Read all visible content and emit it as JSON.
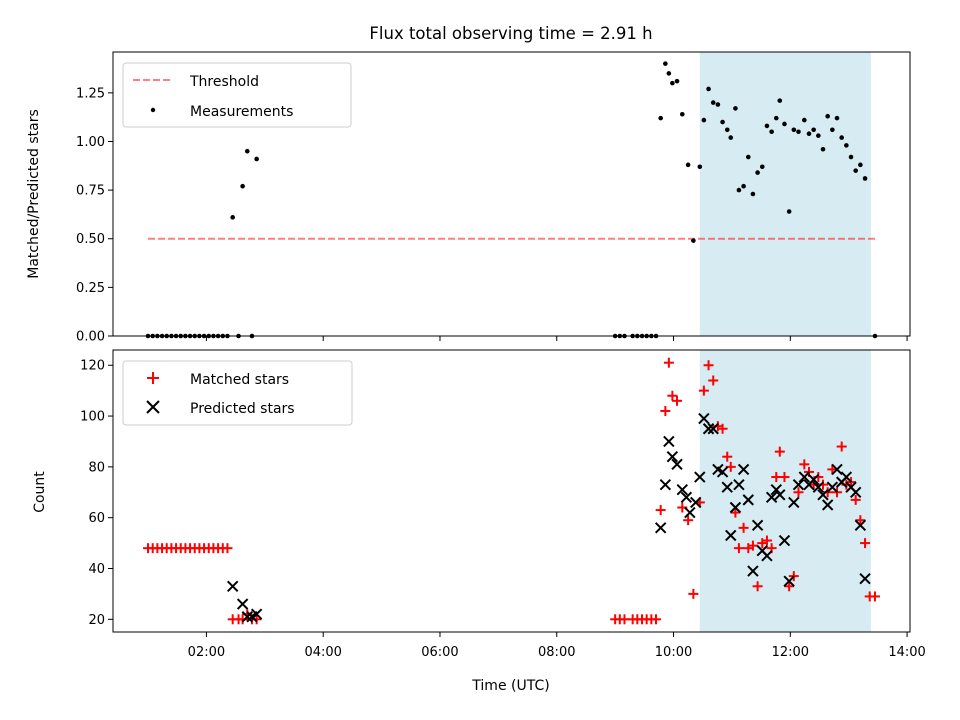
{
  "chart_data": [
    {
      "type": "scatter",
      "title": "Flux total observing time = 2.91 h",
      "xlabel": "",
      "ylabel": "Matched/Predicted stars",
      "x_unit": "hours UTC",
      "xlim": [
        0.4,
        14.05
      ],
      "ylim": [
        0,
        1.46
      ],
      "yticks": [
        "0.00",
        "0.25",
        "0.50",
        "0.75",
        "1.00",
        "1.25"
      ],
      "xticks": [
        "02:00",
        "04:00",
        "06:00",
        "08:00",
        "10:00",
        "12:00",
        "14:00"
      ],
      "highlight_span": [
        10.45,
        13.38
      ],
      "highlight_color": "#add8e6",
      "threshold": {
        "name": "Threshold",
        "value": 0.5,
        "x_range": [
          1.0,
          13.45
        ],
        "color": "#ff0000"
      },
      "legend_position": "upper-left",
      "series": [
        {
          "name": "Measurements",
          "color": "#000000",
          "marker": "dot",
          "points": [
            [
              1.0,
              0
            ],
            [
              1.08,
              0
            ],
            [
              1.16,
              0
            ],
            [
              1.24,
              0
            ],
            [
              1.32,
              0
            ],
            [
              1.4,
              0
            ],
            [
              1.48,
              0
            ],
            [
              1.56,
              0
            ],
            [
              1.64,
              0
            ],
            [
              1.72,
              0
            ],
            [
              1.8,
              0
            ],
            [
              1.88,
              0
            ],
            [
              1.96,
              0
            ],
            [
              2.04,
              0
            ],
            [
              2.12,
              0
            ],
            [
              2.2,
              0
            ],
            [
              2.28,
              0
            ],
            [
              2.36,
              0
            ],
            [
              2.45,
              0.61
            ],
            [
              2.55,
              0
            ],
            [
              2.62,
              0.77
            ],
            [
              2.7,
              0.95
            ],
            [
              2.78,
              0
            ],
            [
              2.86,
              0.91
            ],
            [
              9.0,
              0
            ],
            [
              9.08,
              0
            ],
            [
              9.16,
              0
            ],
            [
              9.3,
              0
            ],
            [
              9.38,
              0
            ],
            [
              9.46,
              0
            ],
            [
              9.54,
              0
            ],
            [
              9.62,
              0
            ],
            [
              9.7,
              0
            ],
            [
              9.78,
              1.12
            ],
            [
              9.86,
              1.4
            ],
            [
              9.92,
              1.35
            ],
            [
              9.98,
              1.3
            ],
            [
              10.06,
              1.31
            ],
            [
              10.15,
              1.14
            ],
            [
              10.25,
              0.88
            ],
            [
              10.34,
              0.49
            ],
            [
              10.45,
              0.87
            ],
            [
              10.52,
              1.11
            ],
            [
              10.6,
              1.27
            ],
            [
              10.68,
              1.2
            ],
            [
              10.76,
              1.19
            ],
            [
              10.84,
              1.1
            ],
            [
              10.92,
              1.06
            ],
            [
              10.98,
              1.02
            ],
            [
              11.06,
              1.17
            ],
            [
              11.12,
              0.75
            ],
            [
              11.2,
              0.77
            ],
            [
              11.28,
              0.92
            ],
            [
              11.36,
              0.73
            ],
            [
              11.44,
              0.84
            ],
            [
              11.52,
              0.87
            ],
            [
              11.6,
              1.08
            ],
            [
              11.68,
              1.05
            ],
            [
              11.76,
              1.12
            ],
            [
              11.82,
              1.21
            ],
            [
              11.9,
              1.09
            ],
            [
              11.98,
              0.64
            ],
            [
              12.06,
              1.06
            ],
            [
              12.14,
              1.05
            ],
            [
              12.24,
              1.11
            ],
            [
              12.32,
              1.04
            ],
            [
              12.4,
              1.06
            ],
            [
              12.48,
              1.03
            ],
            [
              12.56,
              0.96
            ],
            [
              12.64,
              1.13
            ],
            [
              12.72,
              1.06
            ],
            [
              12.8,
              1.12
            ],
            [
              12.88,
              1.02
            ],
            [
              12.96,
              0.98
            ],
            [
              13.04,
              0.92
            ],
            [
              13.12,
              0.85
            ],
            [
              13.2,
              0.88
            ],
            [
              13.28,
              0.81
            ],
            [
              13.45,
              0
            ]
          ]
        }
      ]
    },
    {
      "type": "scatter",
      "title": "",
      "xlabel": "Time (UTC)",
      "ylabel": "Count",
      "x_unit": "hours UTC",
      "xlim": [
        0.4,
        14.05
      ],
      "ylim": [
        15,
        126
      ],
      "yticks": [
        "20",
        "40",
        "60",
        "80",
        "100",
        "120"
      ],
      "xticks": [
        "02:00",
        "04:00",
        "06:00",
        "08:00",
        "10:00",
        "12:00",
        "14:00"
      ],
      "highlight_span": [
        10.45,
        13.38
      ],
      "highlight_color": "#add8e6",
      "legend_position": "upper-left",
      "series": [
        {
          "name": "Matched stars",
          "color": "#ff0000",
          "marker": "plus",
          "points": [
            [
              1.0,
              48
            ],
            [
              1.08,
              48
            ],
            [
              1.16,
              48
            ],
            [
              1.24,
              48
            ],
            [
              1.32,
              48
            ],
            [
              1.4,
              48
            ],
            [
              1.48,
              48
            ],
            [
              1.56,
              48
            ],
            [
              1.64,
              48
            ],
            [
              1.72,
              48
            ],
            [
              1.8,
              48
            ],
            [
              1.88,
              48
            ],
            [
              1.96,
              48
            ],
            [
              2.04,
              48
            ],
            [
              2.12,
              48
            ],
            [
              2.2,
              48
            ],
            [
              2.28,
              48
            ],
            [
              2.36,
              48
            ],
            [
              2.45,
              20
            ],
            [
              2.55,
              20
            ],
            [
              2.62,
              20
            ],
            [
              2.7,
              22
            ],
            [
              2.78,
              20
            ],
            [
              2.86,
              20
            ],
            [
              9.0,
              20
            ],
            [
              9.08,
              20
            ],
            [
              9.16,
              20
            ],
            [
              9.3,
              20
            ],
            [
              9.38,
              20
            ],
            [
              9.46,
              20
            ],
            [
              9.54,
              20
            ],
            [
              9.62,
              20
            ],
            [
              9.7,
              20
            ],
            [
              9.78,
              63
            ],
            [
              9.86,
              102
            ],
            [
              9.92,
              121
            ],
            [
              9.98,
              108
            ],
            [
              10.06,
              106
            ],
            [
              10.15,
              64
            ],
            [
              10.25,
              59
            ],
            [
              10.34,
              30
            ],
            [
              10.45,
              66
            ],
            [
              10.52,
              110
            ],
            [
              10.6,
              120
            ],
            [
              10.68,
              114
            ],
            [
              10.76,
              96
            ],
            [
              10.84,
              95
            ],
            [
              10.92,
              84
            ],
            [
              10.98,
              80
            ],
            [
              11.06,
              62
            ],
            [
              11.12,
              48
            ],
            [
              11.2,
              56
            ],
            [
              11.28,
              48
            ],
            [
              11.36,
              49
            ],
            [
              11.44,
              33
            ],
            [
              11.52,
              50
            ],
            [
              11.6,
              51
            ],
            [
              11.68,
              48
            ],
            [
              11.76,
              76
            ],
            [
              11.82,
              86
            ],
            [
              11.9,
              76
            ],
            [
              11.98,
              33
            ],
            [
              12.06,
              37
            ],
            [
              12.14,
              70
            ],
            [
              12.24,
              81
            ],
            [
              12.32,
              78
            ],
            [
              12.4,
              73
            ],
            [
              12.48,
              76
            ],
            [
              12.56,
              73
            ],
            [
              12.64,
              70
            ],
            [
              12.72,
              79
            ],
            [
              12.8,
              70
            ],
            [
              12.88,
              88
            ],
            [
              12.96,
              73
            ],
            [
              13.04,
              74
            ],
            [
              13.12,
              67
            ],
            [
              13.2,
              59
            ],
            [
              13.28,
              50
            ],
            [
              13.36,
              29
            ],
            [
              13.45,
              29
            ]
          ]
        },
        {
          "name": "Predicted stars",
          "color": "#000000",
          "marker": "x",
          "points": [
            [
              2.45,
              33
            ],
            [
              2.62,
              26
            ],
            [
              2.7,
              21
            ],
            [
              2.78,
              21
            ],
            [
              2.86,
              22
            ],
            [
              9.78,
              56
            ],
            [
              9.86,
              73
            ],
            [
              9.92,
              90
            ],
            [
              9.98,
              84
            ],
            [
              10.06,
              81
            ],
            [
              10.15,
              71
            ],
            [
              10.22,
              68
            ],
            [
              10.28,
              62
            ],
            [
              10.38,
              66
            ],
            [
              10.45,
              76
            ],
            [
              10.52,
              99
            ],
            [
              10.6,
              95
            ],
            [
              10.68,
              95
            ],
            [
              10.76,
              79
            ],
            [
              10.84,
              78
            ],
            [
              10.92,
              72
            ],
            [
              10.98,
              53
            ],
            [
              11.06,
              64
            ],
            [
              11.12,
              73
            ],
            [
              11.2,
              79
            ],
            [
              11.28,
              67
            ],
            [
              11.36,
              39
            ],
            [
              11.44,
              57
            ],
            [
              11.52,
              47
            ],
            [
              11.6,
              45
            ],
            [
              11.68,
              68
            ],
            [
              11.76,
              71
            ],
            [
              11.82,
              69
            ],
            [
              11.9,
              51
            ],
            [
              11.98,
              35
            ],
            [
              12.06,
              66
            ],
            [
              12.14,
              73
            ],
            [
              12.24,
              76
            ],
            [
              12.32,
              73
            ],
            [
              12.4,
              75
            ],
            [
              12.48,
              72
            ],
            [
              12.56,
              69
            ],
            [
              12.64,
              65
            ],
            [
              12.72,
              72
            ],
            [
              12.8,
              79
            ],
            [
              12.88,
              74
            ],
            [
              12.96,
              76
            ],
            [
              13.04,
              72
            ],
            [
              13.12,
              70
            ],
            [
              13.2,
              57
            ],
            [
              13.28,
              36
            ]
          ]
        }
      ]
    }
  ]
}
